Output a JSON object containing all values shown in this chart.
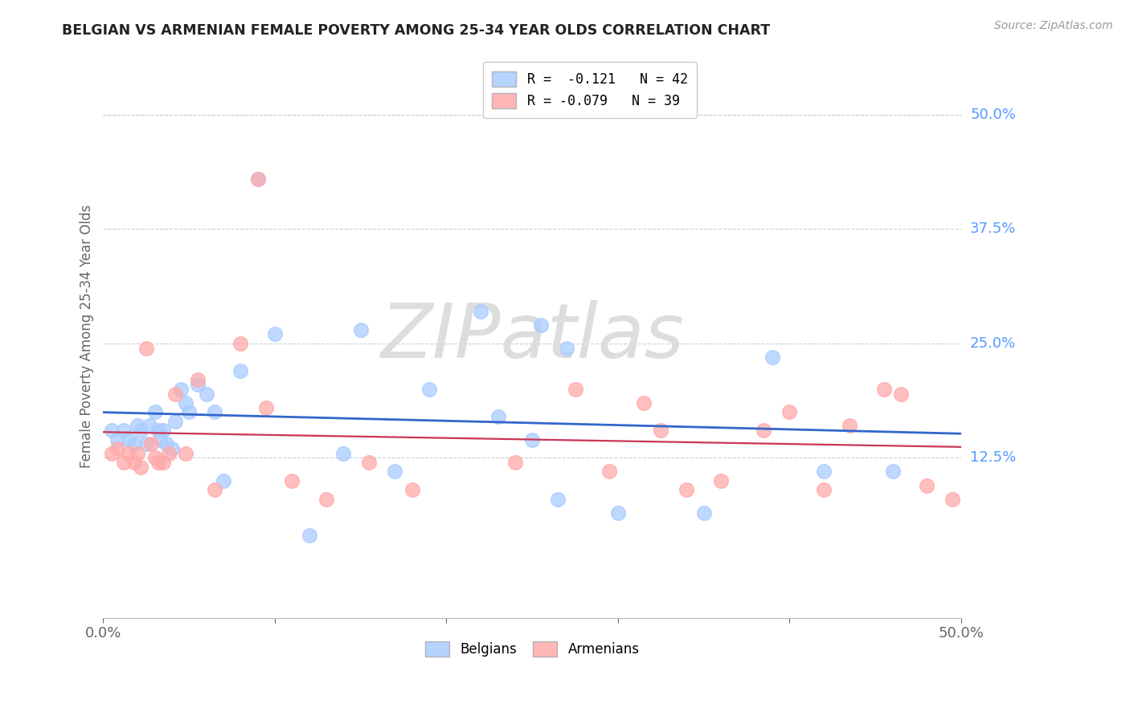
{
  "title": "BELGIAN VS ARMENIAN FEMALE POVERTY AMONG 25-34 YEAR OLDS CORRELATION CHART",
  "source": "Source: ZipAtlas.com",
  "ylabel": "Female Poverty Among 25-34 Year Olds",
  "xlim": [
    0.0,
    0.5
  ],
  "ylim": [
    -0.05,
    0.565
  ],
  "ytick_positions": [
    0.125,
    0.25,
    0.375,
    0.5
  ],
  "ytick_labels": [
    "12.5%",
    "25.0%",
    "37.5%",
    "50.0%"
  ],
  "grid_color": "#cccccc",
  "background_color": "#ffffff",
  "title_color": "#222222",
  "axis_label_color": "#666666",
  "right_label_color": "#5599ff",
  "blue_scatter_color": "#aaccff",
  "pink_scatter_color": "#ffaaaa",
  "blue_line_color": "#3366cc",
  "pink_line_color": "#cc3355",
  "legend_blue_label": "R =  -0.121   N = 42",
  "legend_pink_label": "R = -0.079   N = 39",
  "watermark": "ZIPatlas",
  "belgians_legend": "Belgians",
  "armenians_legend": "Armenians",
  "belgians_x": [
    0.005,
    0.008,
    0.012,
    0.015,
    0.018,
    0.02,
    0.022,
    0.025,
    0.027,
    0.03,
    0.032,
    0.033,
    0.035,
    0.037,
    0.04,
    0.042,
    0.045,
    0.048,
    0.05,
    0.055,
    0.06,
    0.065,
    0.07,
    0.08,
    0.09,
    0.12,
    0.15,
    0.17,
    0.22,
    0.25,
    0.255,
    0.265,
    0.27,
    0.3,
    0.35,
    0.39,
    0.42,
    0.46,
    0.23,
    0.14,
    0.1,
    0.19
  ],
  "belgians_y": [
    0.155,
    0.145,
    0.155,
    0.145,
    0.14,
    0.16,
    0.155,
    0.14,
    0.16,
    0.175,
    0.155,
    0.145,
    0.155,
    0.14,
    0.135,
    0.165,
    0.2,
    0.185,
    0.175,
    0.205,
    0.195,
    0.175,
    0.1,
    0.22,
    0.43,
    0.04,
    0.265,
    0.11,
    0.285,
    0.145,
    0.27,
    0.08,
    0.245,
    0.065,
    0.065,
    0.235,
    0.11,
    0.11,
    0.17,
    0.13,
    0.26,
    0.2
  ],
  "armenians_x": [
    0.005,
    0.008,
    0.012,
    0.015,
    0.018,
    0.02,
    0.022,
    0.025,
    0.028,
    0.03,
    0.032,
    0.035,
    0.038,
    0.042,
    0.048,
    0.055,
    0.065,
    0.08,
    0.09,
    0.095,
    0.11,
    0.13,
    0.155,
    0.18,
    0.24,
    0.275,
    0.295,
    0.315,
    0.325,
    0.34,
    0.36,
    0.385,
    0.4,
    0.42,
    0.435,
    0.455,
    0.465,
    0.48,
    0.495
  ],
  "armenians_y": [
    0.13,
    0.135,
    0.12,
    0.13,
    0.12,
    0.13,
    0.115,
    0.245,
    0.14,
    0.125,
    0.12,
    0.12,
    0.13,
    0.195,
    0.13,
    0.21,
    0.09,
    0.25,
    0.43,
    0.18,
    0.1,
    0.08,
    0.12,
    0.09,
    0.12,
    0.2,
    0.11,
    0.185,
    0.155,
    0.09,
    0.1,
    0.155,
    0.175,
    0.09,
    0.16,
    0.2,
    0.195,
    0.095,
    0.08
  ]
}
